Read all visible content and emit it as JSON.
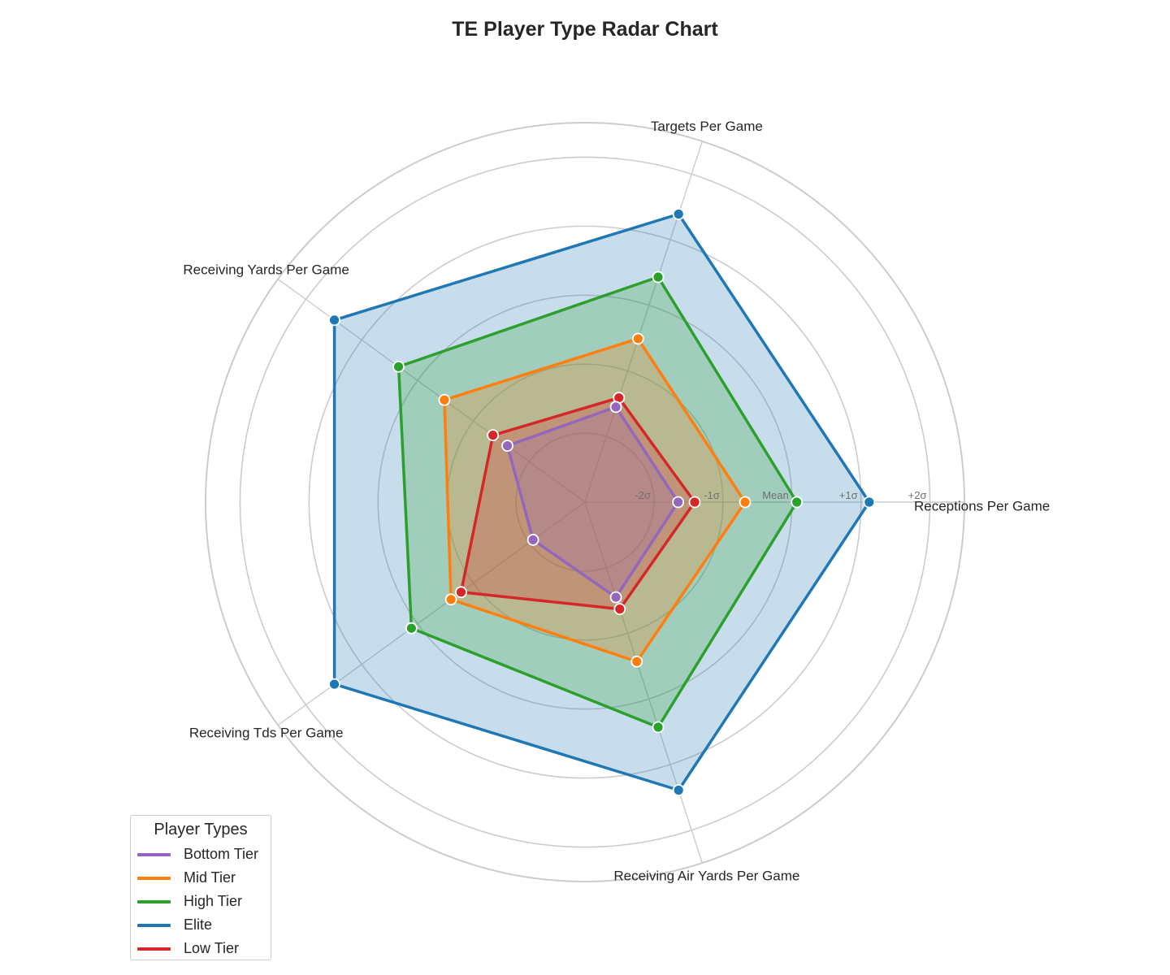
{
  "chart_data": {
    "type": "radar",
    "title": "TE Player Type Radar Chart",
    "axes": [
      "Receptions Per Game",
      "Targets Per Game",
      "Receiving Yards Per Game",
      "Receiving Tds Per Game",
      "Receiving Air Yards Per Game"
    ],
    "rlim": [
      -3,
      2.5
    ],
    "ring_values": [
      -2,
      -1,
      0,
      1,
      2,
      2.5
    ],
    "ring_labels": [
      "-2σ",
      "-1σ",
      "Mean",
      "+1σ",
      "+2σ"
    ],
    "grid": true,
    "legend_title": "Player Types",
    "legend_position": "lower-left",
    "series": [
      {
        "name": "Bottom Tier",
        "color": "#9467bd",
        "values": [
          -1.65,
          -1.55,
          -1.61,
          -2.07,
          -1.55
        ]
      },
      {
        "name": "Mid Tier",
        "color": "#ff7f0e",
        "values": [
          -0.68,
          -0.51,
          -0.48,
          -0.6,
          -0.57
        ]
      },
      {
        "name": "High Tier",
        "color": "#2ca02c",
        "values": [
          0.07,
          0.43,
          0.34,
          0.11,
          0.43
        ]
      },
      {
        "name": "Elite",
        "color": "#1f77b4",
        "values": [
          1.12,
          1.39,
          1.49,
          1.49,
          1.39
        ]
      },
      {
        "name": "Low Tier",
        "color": "#d62728",
        "values": [
          -1.41,
          -1.41,
          -1.35,
          -0.78,
          -1.37
        ]
      }
    ]
  }
}
